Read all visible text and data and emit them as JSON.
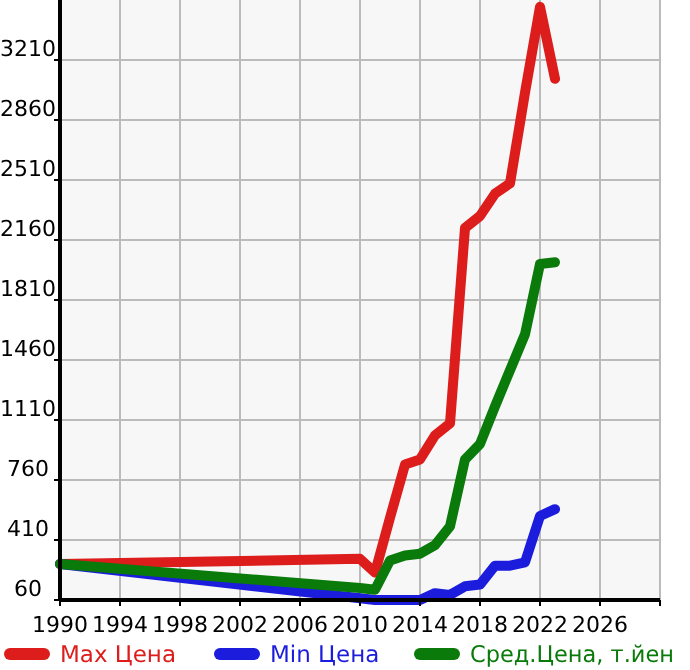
{
  "chart_data": {
    "type": "line",
    "x": [
      1990,
      2010,
      2011,
      2012,
      2013,
      2014,
      2015,
      2016,
      2017,
      2018,
      2019,
      2020,
      2021,
      2022,
      2023
    ],
    "series": [
      {
        "name": "Max Цена",
        "color": "#dd1c1c",
        "values": [
          270,
          300,
          220,
          540,
          850,
          880,
          1020,
          1090,
          2230,
          2300,
          2430,
          2490,
          3020,
          3520,
          3100
        ]
      },
      {
        "name": "Min Цена",
        "color": "#1c1cdd",
        "values": [
          270,
          70,
          60,
          60,
          60,
          60,
          100,
          90,
          140,
          150,
          260,
          260,
          280,
          550,
          590
        ]
      },
      {
        "name": "Сред.Цена, т.йен",
        "color": "#0a7a0a",
        "values": [
          270,
          130,
          120,
          290,
          320,
          330,
          380,
          490,
          880,
          970,
          1190,
          1400,
          1610,
          2020,
          2030
        ]
      }
    ],
    "xlim": [
      1990,
      2030
    ],
    "xticks": [
      1990,
      1994,
      1998,
      2002,
      2006,
      2010,
      2014,
      2018,
      2022,
      2026
    ],
    "ylim": [
      60,
      3560
    ],
    "yticks": [
      60,
      410,
      760,
      1110,
      1460,
      1810,
      2160,
      2510,
      2860,
      3210
    ],
    "grid": true,
    "legend": "bottom",
    "line_style": "solid"
  }
}
